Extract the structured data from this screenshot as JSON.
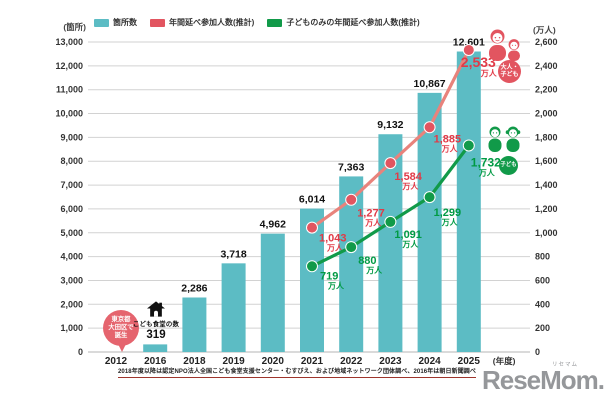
{
  "colors": {
    "bar": "#5cbcc4",
    "red": "#e25560",
    "red_line": "#e8837c",
    "red_text": "#e13a47",
    "green": "#119a49",
    "green_text": "#009a44",
    "pink_bubble": "#e5646e",
    "grid": "#d2d2d2",
    "baseline": "#b5b5b5",
    "logo_gray": "#95979a",
    "footnote_line": "#9e352c",
    "icon_black": "#111111"
  },
  "axes": {
    "left_unit": "(箇所)",
    "right_unit": "(万人)",
    "x_suffix": "(年度)"
  },
  "legend": [
    {
      "label": "箇所数",
      "color": "#5cbcc4"
    },
    {
      "label": "年間延べ参加人数(推計)",
      "color": "#e25560"
    },
    {
      "label": "子どものみの年間延べ参加人数(推計)",
      "color": "#119a49"
    }
  ],
  "chart_data": {
    "type": "bar+line",
    "categories": [
      "2012",
      "2016",
      "2018",
      "2019",
      "2020",
      "2021",
      "2022",
      "2023",
      "2024",
      "2025"
    ],
    "x_axis_suffix": "(年度)",
    "left_axis": {
      "unit": "(箇所)",
      "min": 0,
      "max": 13000,
      "step": 1000
    },
    "right_axis": {
      "unit": "(万人)",
      "min": 0,
      "max": 2600,
      "step": 200
    },
    "grid": true,
    "bar_series": {
      "name": "箇所数",
      "axis": "left",
      "values": [
        null,
        319,
        2286,
        3718,
        4962,
        6014,
        7363,
        9132,
        10867,
        12601
      ],
      "labels": [
        null,
        "319",
        "2,286",
        "3,718",
        "4,962",
        "6,014",
        "7,363",
        "9,132",
        "10,867",
        "12,601"
      ]
    },
    "line_series": [
      {
        "name": "年間延べ参加人数(推計)",
        "axis": "right",
        "unit": "万人",
        "points": [
          {
            "x": "2021",
            "value": 1043,
            "label": "1,043"
          },
          {
            "x": "2022",
            "value": 1277,
            "label": "1,277"
          },
          {
            "x": "2023",
            "value": 1584,
            "label": "1,584"
          },
          {
            "x": "2024",
            "value": 1885,
            "label": "1,885"
          },
          {
            "x": "2025",
            "value": 2533,
            "label": "2,533"
          }
        ]
      },
      {
        "name": "子どものみの年間延べ参加人数(推計)",
        "axis": "right",
        "unit": "万人",
        "points": [
          {
            "x": "2021",
            "value": 719,
            "label": "719"
          },
          {
            "x": "2022",
            "value": 880,
            "label": "880"
          },
          {
            "x": "2023",
            "value": 1091,
            "label": "1,091"
          },
          {
            "x": "2024",
            "value": 1299,
            "label": "1,299"
          },
          {
            "x": "2025",
            "value": 1732,
            "label": "1,732"
          }
        ]
      }
    ]
  },
  "annotations": {
    "origin_bubble": {
      "lines": [
        "東京都",
        "大田区で",
        "誕生"
      ]
    },
    "house_note": {
      "title": "こども食堂の数",
      "value": "319"
    },
    "red_badge": {
      "lines": [
        "大人・",
        "子ども"
      ]
    },
    "green_badge": "子ども"
  },
  "footnote": "2018年度以降は認定NPO法人全国こども食堂支援センター・むすびえ、および地域ネットワーク団体調べ、2016年は朝日新聞調べ",
  "logo": {
    "name": "ReseMom.",
    "furigana": "リセマム"
  }
}
